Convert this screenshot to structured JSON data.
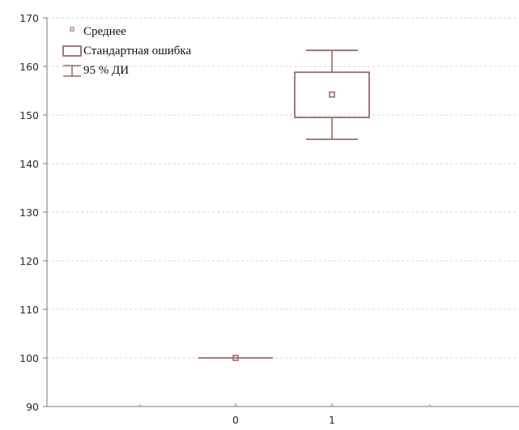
{
  "chart_data": {
    "type": "box",
    "title": "",
    "xlabel": "",
    "ylabel": "",
    "ylim": [
      90,
      170
    ],
    "yticks": [
      90,
      100,
      110,
      120,
      130,
      140,
      150,
      160,
      170
    ],
    "xticks": [
      "0",
      "1"
    ],
    "grid": true,
    "legend_position": "top-left",
    "legend": [
      {
        "symbol": "mean",
        "label": "Среднее"
      },
      {
        "symbol": "box",
        "label": "Стандартная ошибка"
      },
      {
        "symbol": "whisker",
        "label": "95 % ДИ"
      }
    ],
    "groups": [
      {
        "x": "0",
        "mean": 100,
        "se_low": 100,
        "se_high": 100,
        "ci_low": 100,
        "ci_high": 100
      },
      {
        "x": "1",
        "mean": 154.2,
        "se_low": 149.5,
        "se_high": 158.8,
        "ci_low": 145,
        "ci_high": 163.3
      }
    ],
    "color": "#9b6a6a"
  }
}
